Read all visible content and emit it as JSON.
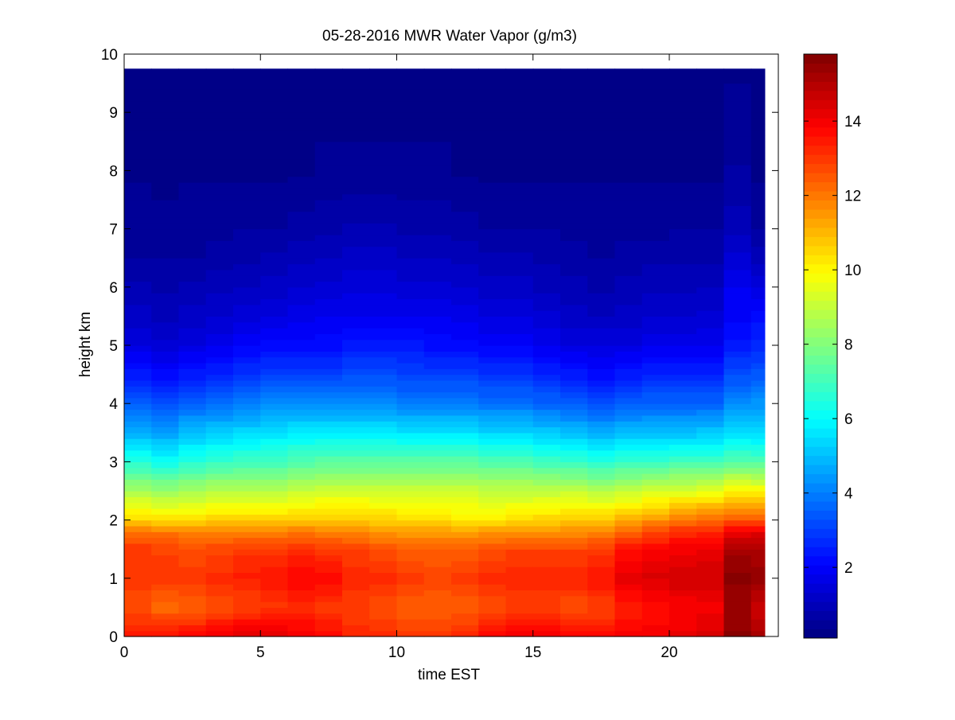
{
  "figure": {
    "background": "#ffffff",
    "axes_background": "#ffffff"
  },
  "chart_data": {
    "type": "heatmap",
    "title": "05-28-2016 MWR Water Vapor (g/m3)",
    "xlabel": "time EST",
    "ylabel": "height km",
    "xlim": [
      0,
      24
    ],
    "ylim": [
      0,
      10
    ],
    "xticks": [
      0,
      5,
      10,
      15,
      20
    ],
    "yticks": [
      0,
      1,
      2,
      3,
      4,
      5,
      6,
      7,
      8,
      9,
      10
    ],
    "colormap": "jet",
    "clim": [
      0.1,
      15.8
    ],
    "colorbar_ticks": [
      2,
      4,
      6,
      8,
      10,
      12,
      14
    ],
    "x_centers": [
      0.5,
      1.5,
      2.5,
      3.5,
      4.5,
      5.5,
      6.5,
      7.5,
      8.5,
      9.5,
      10.5,
      11.5,
      12.5,
      13.5,
      14.5,
      15.5,
      16.5,
      17.5,
      18.5,
      19.5,
      20.5,
      21.5,
      22.5,
      23.0
    ],
    "x_edges": [
      0,
      1,
      2,
      3,
      4,
      5,
      6,
      7,
      8,
      9,
      10,
      11,
      12,
      13,
      14,
      15,
      16,
      17,
      18,
      19,
      20,
      21,
      22,
      23,
      23.5
    ],
    "height_top": 9.75,
    "profiles": {
      "heights_km": [
        0,
        0.5,
        1.0,
        1.5,
        1.8,
        2.0,
        2.5,
        3.0,
        3.5,
        4.0,
        4.5,
        5.0,
        5.5,
        6.0,
        6.5,
        7.0,
        8.0,
        9.75
      ],
      "columns": [
        [
          13.6,
          12.6,
          13.0,
          13.0,
          12.2,
          10.6,
          8.6,
          6.6,
          4.8,
          3.4,
          2.4,
          1.6,
          1.2,
          0.9,
          0.6,
          0.5,
          0.3,
          0.2
        ],
        [
          13.6,
          12.2,
          13.0,
          12.8,
          12.0,
          10.4,
          8.4,
          6.2,
          4.6,
          3.2,
          2.2,
          1.4,
          1.0,
          0.8,
          0.6,
          0.4,
          0.3,
          0.2
        ],
        [
          13.8,
          12.4,
          13.0,
          12.6,
          11.8,
          10.4,
          8.6,
          6.6,
          5.0,
          3.6,
          2.4,
          1.6,
          1.2,
          0.9,
          0.6,
          0.5,
          0.3,
          0.2
        ],
        [
          14.2,
          12.6,
          13.2,
          12.8,
          11.8,
          10.6,
          8.8,
          6.8,
          5.2,
          3.8,
          2.6,
          1.8,
          1.3,
          1.0,
          0.7,
          0.5,
          0.3,
          0.2
        ],
        [
          14.4,
          12.8,
          13.4,
          13.0,
          11.8,
          10.6,
          8.8,
          7.0,
          5.4,
          4.0,
          2.8,
          2.0,
          1.5,
          1.1,
          0.8,
          0.6,
          0.3,
          0.2
        ],
        [
          14.4,
          13.0,
          13.6,
          13.0,
          11.8,
          10.6,
          8.8,
          7.0,
          5.6,
          4.2,
          3.0,
          2.2,
          1.6,
          1.2,
          0.9,
          0.6,
          0.3,
          0.2
        ],
        [
          14.0,
          13.2,
          13.8,
          13.2,
          12.0,
          10.8,
          9.0,
          7.2,
          5.8,
          4.2,
          3.0,
          2.2,
          1.7,
          1.3,
          1.0,
          0.7,
          0.3,
          0.2
        ],
        [
          13.8,
          13.0,
          13.8,
          13.0,
          11.8,
          10.8,
          9.2,
          7.4,
          5.8,
          4.2,
          3.0,
          2.2,
          1.8,
          1.4,
          1.1,
          0.8,
          0.4,
          0.2
        ],
        [
          13.4,
          12.8,
          13.4,
          12.8,
          11.8,
          10.8,
          9.2,
          7.4,
          5.8,
          4.2,
          3.2,
          2.4,
          1.8,
          1.5,
          1.2,
          0.9,
          0.4,
          0.2
        ],
        [
          13.2,
          12.6,
          13.2,
          12.6,
          11.6,
          10.6,
          9.2,
          7.4,
          5.8,
          4.2,
          3.2,
          2.4,
          1.8,
          1.5,
          1.2,
          0.9,
          0.4,
          0.2
        ],
        [
          13.0,
          12.4,
          13.0,
          12.4,
          11.4,
          10.4,
          9.2,
          7.4,
          5.6,
          4.0,
          3.0,
          2.4,
          1.8,
          1.4,
          1.1,
          0.8,
          0.4,
          0.2
        ],
        [
          13.0,
          12.4,
          12.8,
          12.4,
          11.4,
          10.4,
          9.2,
          7.4,
          5.6,
          4.0,
          3.0,
          2.2,
          1.8,
          1.4,
          1.1,
          0.8,
          0.4,
          0.2
        ],
        [
          13.2,
          12.4,
          13.0,
          12.4,
          11.4,
          10.2,
          9.2,
          7.4,
          5.6,
          4.0,
          3.0,
          2.2,
          1.7,
          1.3,
          1.0,
          0.7,
          0.3,
          0.2
        ],
        [
          13.8,
          12.6,
          13.2,
          12.6,
          11.6,
          10.2,
          9.0,
          7.2,
          5.4,
          3.8,
          2.8,
          2.0,
          1.6,
          1.2,
          0.9,
          0.6,
          0.3,
          0.2
        ],
        [
          14.0,
          12.8,
          13.4,
          12.8,
          11.6,
          10.4,
          9.0,
          7.2,
          5.4,
          3.8,
          2.8,
          2.0,
          1.6,
          1.2,
          0.9,
          0.6,
          0.3,
          0.2
        ],
        [
          14.0,
          12.8,
          13.4,
          12.8,
          11.6,
          10.6,
          9.0,
          7.0,
          5.2,
          3.6,
          2.6,
          1.8,
          1.4,
          1.0,
          0.8,
          0.6,
          0.3,
          0.2
        ],
        [
          13.8,
          12.6,
          13.4,
          12.8,
          11.6,
          10.8,
          9.0,
          6.8,
          5.0,
          3.4,
          2.4,
          1.6,
          1.2,
          0.9,
          0.7,
          0.5,
          0.3,
          0.2
        ],
        [
          13.8,
          12.8,
          13.6,
          13.0,
          11.8,
          10.8,
          8.8,
          6.6,
          4.8,
          3.2,
          2.2,
          1.6,
          1.1,
          0.8,
          0.6,
          0.5,
          0.3,
          0.2
        ],
        [
          14.0,
          13.4,
          14.2,
          13.6,
          12.2,
          11.2,
          9.0,
          6.8,
          5.0,
          3.4,
          2.4,
          1.6,
          1.2,
          0.9,
          0.7,
          0.5,
          0.3,
          0.2
        ],
        [
          14.0,
          13.6,
          14.4,
          13.8,
          12.8,
          11.6,
          9.2,
          6.8,
          5.0,
          3.6,
          2.6,
          1.8,
          1.3,
          1.0,
          0.8,
          0.5,
          0.3,
          0.2
        ],
        [
          14.2,
          13.8,
          14.6,
          14.0,
          13.2,
          12.0,
          9.4,
          7.0,
          5.0,
          3.6,
          2.6,
          1.8,
          1.3,
          1.0,
          0.8,
          0.6,
          0.3,
          0.2
        ],
        [
          14.4,
          14.0,
          14.6,
          14.2,
          13.4,
          12.2,
          9.6,
          7.0,
          5.2,
          3.6,
          2.6,
          1.8,
          1.4,
          1.1,
          0.8,
          0.6,
          0.3,
          0.2
        ],
        [
          15.6,
          15.4,
          15.6,
          15.2,
          14.0,
          12.6,
          10.0,
          7.4,
          5.4,
          4.2,
          3.2,
          2.4,
          2.0,
          1.8,
          1.4,
          1.0,
          0.6,
          0.3
        ],
        [
          15.2,
          14.6,
          15.4,
          15.2,
          14.2,
          12.6,
          10.0,
          7.2,
          5.4,
          4.4,
          3.4,
          2.6,
          2.2,
          1.6,
          1.0,
          0.6,
          0.3,
          0.2
        ]
      ]
    }
  }
}
